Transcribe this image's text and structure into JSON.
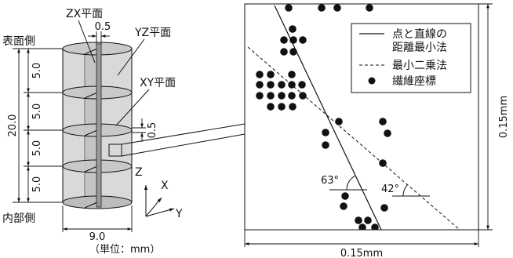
{
  "cylinder": {
    "zx_plane_label": "ZX平面",
    "zx_thickness": "0.5",
    "yz_plane_label": "YZ平面",
    "surface_side_label": "表面側",
    "xy_plane_label": "XY平面",
    "xy_thickness": "0.5",
    "segment_heights": [
      "5.0",
      "5.0",
      "5.0",
      "5.0"
    ],
    "total_height": "20.0",
    "inner_side_label": "内部側",
    "diameter": "9.0",
    "unit_note": "（単位：mm）",
    "axes": {
      "z": "Z",
      "x": "X",
      "y": "Y"
    }
  },
  "plot": {
    "legend": {
      "distance_method_line1": "点と直線の",
      "distance_method_line2": "距離最小法",
      "least_squares": "最小二乗法",
      "fiber_coords": "繊維座標"
    },
    "angle_distance_method": "63°",
    "angle_least_squares": "42°",
    "height_dim": "0.15mm",
    "width_dim": "0.15mm"
  }
}
